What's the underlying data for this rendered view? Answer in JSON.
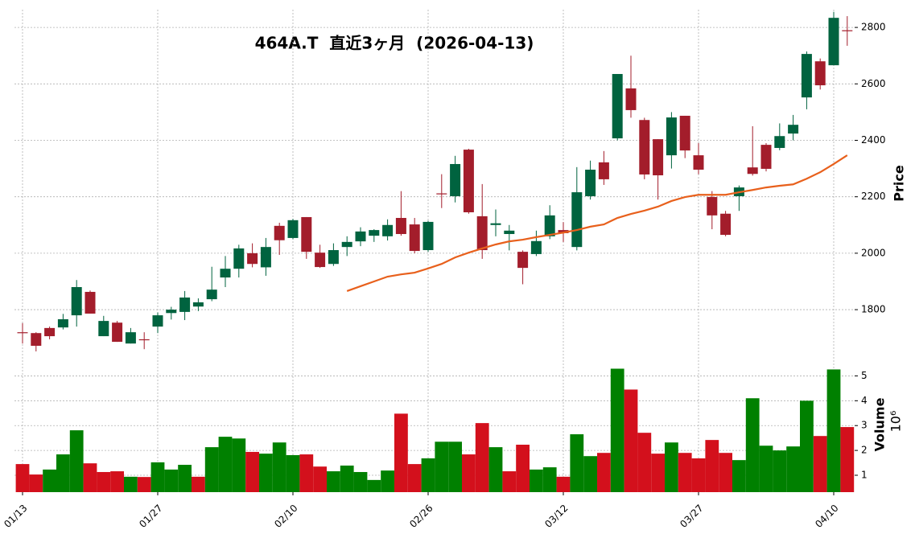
{
  "chart_data": {
    "type": "candlestick",
    "title": "464A.T  直近3ヶ月  (2026-04-13)",
    "categories": [
      "01/13",
      null,
      null,
      null,
      null,
      null,
      null,
      null,
      null,
      null,
      "01/27",
      null,
      null,
      null,
      null,
      null,
      null,
      null,
      null,
      null,
      "02/10",
      null,
      null,
      null,
      null,
      null,
      null,
      null,
      null,
      null,
      "02/26",
      null,
      null,
      null,
      null,
      null,
      null,
      null,
      null,
      null,
      "03/12",
      null,
      null,
      null,
      null,
      null,
      null,
      null,
      null,
      null,
      "03/27",
      null,
      null,
      null,
      null,
      null,
      null,
      null,
      null,
      null,
      "04/10",
      null
    ],
    "open": [
      1720,
      1717,
      1735,
      1737,
      1780,
      1863,
      1706,
      1754,
      1680,
      1695,
      1740,
      1788,
      1792,
      1811,
      1837,
      1914,
      1945,
      2000,
      1950,
      2097,
      2054,
      2128,
      2002,
      1962,
      2022,
      2042,
      2062,
      2060,
      2125,
      2102,
      2011,
      2212,
      2202,
      2367,
      2131,
      2100,
      2068,
      2005,
      1997,
      2060,
      2082,
      2022,
      2202,
      2322,
      2407,
      2584,
      2472,
      2404,
      2347,
      2487,
      2347,
      2199,
      2140,
      2202,
      2304,
      2384,
      2373,
      2424,
      2552,
      2680,
      2666,
      2790
    ],
    "high": [
      1752,
      1720,
      1740,
      1785,
      1905,
      1868,
      1778,
      1760,
      1735,
      1720,
      1790,
      1810,
      1866,
      1840,
      1952,
      1990,
      2030,
      2035,
      2054,
      2108,
      2122,
      2128,
      2030,
      2035,
      2060,
      2092,
      2085,
      2120,
      2220,
      2125,
      2115,
      2280,
      2345,
      2370,
      2245,
      2155,
      2100,
      2010,
      2080,
      2170,
      2110,
      2305,
      2328,
      2362,
      2635,
      2700,
      2480,
      2404,
      2500,
      2487,
      2390,
      2220,
      2150,
      2240,
      2450,
      2390,
      2460,
      2490,
      2715,
      2690,
      2855,
      2840
    ],
    "low": [
      1680,
      1652,
      1695,
      1730,
      1740,
      1786,
      1706,
      1686,
      1680,
      1660,
      1717,
      1765,
      1763,
      1795,
      1830,
      1880,
      1914,
      1950,
      1920,
      1994,
      2050,
      1980,
      1948,
      1955,
      1990,
      2025,
      2040,
      2045,
      2062,
      2000,
      2005,
      2160,
      2180,
      2140,
      1980,
      2060,
      2010,
      1890,
      1990,
      2050,
      2040,
      2010,
      2190,
      2242,
      2400,
      2480,
      2262,
      2190,
      2300,
      2337,
      2280,
      2085,
      2060,
      2150,
      2275,
      2290,
      2365,
      2400,
      2510,
      2580,
      2666,
      2735
    ],
    "close": [
      1719,
      1672,
      1706,
      1766,
      1880,
      1786,
      1760,
      1686,
      1720,
      1692,
      1780,
      1800,
      1843,
      1826,
      1871,
      1945,
      2017,
      1962,
      2022,
      2046,
      2117,
      2005,
      1951,
      2011,
      2040,
      2077,
      2082,
      2100,
      2068,
      2008,
      2111,
      2210,
      2316,
      2145,
      2011,
      2106,
      2080,
      1948,
      2043,
      2134,
      2071,
      2216,
      2296,
      2262,
      2635,
      2507,
      2279,
      2276,
      2481,
      2364,
      2296,
      2134,
      2065,
      2233,
      2281,
      2299,
      2415,
      2455,
      2706,
      2595,
      2834,
      2788
    ],
    "volume": [
      1.45,
      1.03,
      1.23,
      1.84,
      2.81,
      1.48,
      1.13,
      1.16,
      0.94,
      0.93,
      1.52,
      1.23,
      1.42,
      0.94,
      2.13,
      2.55,
      2.48,
      1.94,
      1.87,
      2.32,
      1.81,
      1.84,
      1.35,
      1.16,
      1.39,
      1.13,
      0.81,
      1.19,
      3.48,
      1.45,
      1.68,
      2.35,
      2.35,
      1.84,
      3.1,
      2.13,
      1.16,
      2.23,
      1.23,
      1.32,
      0.94,
      2.65,
      1.77,
      1.9,
      5.29,
      4.45,
      2.71,
      1.87,
      2.32,
      1.9,
      1.68,
      2.42,
      1.9,
      1.61,
      4.1,
      2.19,
      2.0,
      2.16,
      4.0,
      2.58,
      5.26,
      2.94
    ],
    "ma": [
      null,
      null,
      null,
      null,
      null,
      null,
      null,
      null,
      null,
      null,
      null,
      null,
      null,
      null,
      null,
      null,
      null,
      null,
      null,
      null,
      null,
      null,
      null,
      null,
      1866,
      1883,
      1900,
      1917,
      1925,
      1931,
      1946,
      1962,
      1985,
      2002,
      2017,
      2031,
      2042,
      2048,
      2057,
      2065,
      2073,
      2082,
      2094,
      2102,
      2125,
      2139,
      2151,
      2165,
      2185,
      2199,
      2207,
      2207,
      2207,
      2216,
      2224,
      2233,
      2239,
      2244,
      2264,
      2287,
      2316,
      2347
    ],
    "ylim": [
      1615,
      2863
    ],
    "yticks": [
      1800,
      2000,
      2200,
      2400,
      2600,
      2800
    ],
    "volume_ylim": [
      0.32,
      5.5
    ],
    "volume_yticks": [
      1,
      2,
      3,
      4,
      5
    ],
    "ylabel": "Price",
    "volume_label": "Volume",
    "volume_multiplier": "10⁶",
    "up_color": "#00633f",
    "down_color": "#a31d2b",
    "volume_up_color": "#008000",
    "volume_down_color": "#d3101c",
    "ma_color": "#e8601c",
    "grid": true
  }
}
